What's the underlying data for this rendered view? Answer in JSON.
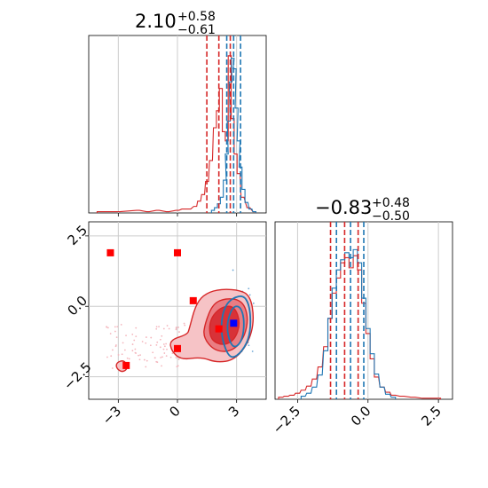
{
  "chart_data": {
    "type": "corner",
    "colors": {
      "red": "#d62728",
      "blue": "#1f77b4",
      "marker_red": "#ff0000",
      "marker_blue": "#0000ff",
      "grid": "#cccccc"
    },
    "parameters": [
      {
        "range": [
          -4.5,
          4.5
        ],
        "ticks": [
          -3,
          0,
          3
        ],
        "tick_labels": [
          "−3",
          "0",
          "3"
        ],
        "title": {
          "median": "2.10",
          "plus": "+0.58",
          "minus": "−0.61"
        },
        "quantiles_red": [
          1.49,
          2.1,
          2.68
        ],
        "quantiles_blue": [
          2.5,
          2.85,
          3.2
        ],
        "hist_red": {
          "centers": [
            -4.0,
            -3.0,
            -2.0,
            -1.5,
            -1.0,
            -0.5,
            0.0,
            0.3,
            0.6,
            0.9,
            1.1,
            1.3,
            1.5,
            1.7,
            1.9,
            2.05,
            2.2,
            2.35,
            2.5,
            2.65,
            2.8,
            2.95,
            3.1,
            3.3,
            3.6,
            3.9
          ],
          "heights": [
            1,
            1,
            2,
            1,
            2,
            1,
            2,
            3,
            3,
            5,
            9,
            14,
            24,
            40,
            65,
            78,
            95,
            62,
            55,
            120,
            72,
            45,
            30,
            12,
            4,
            1
          ]
        },
        "hist_blue": {
          "centers": [
            1.8,
            1.95,
            2.1,
            2.25,
            2.4,
            2.5,
            2.6,
            2.7,
            2.8,
            2.9,
            3.0,
            3.1,
            3.2,
            3.35,
            3.5,
            3.7,
            3.9
          ],
          "heights": [
            2,
            4,
            7,
            12,
            25,
            45,
            70,
            100,
            118,
            110,
            80,
            55,
            35,
            18,
            8,
            3,
            1
          ]
        },
        "hist_max": 130
      },
      {
        "range": [
          -3.3,
          3.0
        ],
        "ticks": [
          -2.5,
          0.0,
          2.5
        ],
        "tick_labels": [
          "−2.5",
          "0.0",
          "2.5"
        ],
        "title": {
          "median": "−0.83",
          "plus": "+0.48",
          "minus": "−0.50"
        },
        "quantiles_red": [
          -1.33,
          -0.83,
          -0.35
        ],
        "quantiles_blue": [
          -1.12,
          -0.62,
          -0.15
        ],
        "hist_red": {
          "centers": [
            -3.1,
            -2.9,
            -2.7,
            -2.5,
            -2.3,
            -2.1,
            -1.9,
            -1.7,
            -1.5,
            -1.35,
            -1.2,
            -1.05,
            -0.9,
            -0.75,
            -0.6,
            -0.45,
            -0.3,
            -0.15,
            0.0,
            0.15,
            0.3,
            0.5,
            0.7,
            0.9,
            1.2,
            1.6,
            2.0,
            2.5
          ],
          "heights": [
            2,
            3,
            4,
            6,
            9,
            13,
            20,
            32,
            52,
            80,
            105,
            120,
            135,
            140,
            130,
            142,
            128,
            95,
            65,
            40,
            22,
            12,
            7,
            4,
            3,
            2,
            1,
            1
          ]
        },
        "hist_blue": {
          "centers": [
            -2.3,
            -2.1,
            -1.9,
            -1.7,
            -1.5,
            -1.35,
            -1.2,
            -1.05,
            -0.9,
            -0.75,
            -0.6,
            -0.45,
            -0.3,
            -0.15,
            0.0,
            0.15,
            0.3,
            0.5,
            0.7,
            0.9
          ],
          "heights": [
            3,
            6,
            12,
            24,
            48,
            80,
            110,
            128,
            138,
            145,
            140,
            148,
            135,
            100,
            70,
            45,
            25,
            12,
            5,
            2
          ]
        },
        "hist_max": 165
      }
    ],
    "scatter": {
      "red_squares": [
        {
          "x": -3.4,
          "y": 1.9
        },
        {
          "x": 0.0,
          "y": 1.9
        },
        {
          "x": 0.8,
          "y": 0.2
        },
        {
          "x": 0.0,
          "y": -1.5
        },
        {
          "x": -2.6,
          "y": -2.1
        },
        {
          "x": 2.1,
          "y": -0.8
        }
      ],
      "blue_squares": [
        {
          "x": 2.85,
          "y": -0.6
        }
      ]
    },
    "contours_red": [
      [
        [
          0.6,
          -0.8
        ],
        [
          0.5,
          -1.0
        ],
        [
          -0.4,
          -1.2
        ],
        [
          -0.3,
          -1.6
        ],
        [
          0.2,
          -1.9
        ],
        [
          1.2,
          -1.8
        ],
        [
          2.0,
          -2.0
        ],
        [
          2.9,
          -1.9
        ],
        [
          3.6,
          -1.3
        ],
        [
          3.9,
          -0.5
        ],
        [
          3.7,
          0.4
        ],
        [
          3.0,
          0.6
        ],
        [
          2.0,
          0.6
        ],
        [
          1.3,
          0.4
        ],
        [
          0.9,
          0.0
        ]
      ],
      [
        [
          1.4,
          -0.6
        ],
        [
          1.3,
          -1.1
        ],
        [
          1.9,
          -1.6
        ],
        [
          2.8,
          -1.6
        ],
        [
          3.4,
          -1.1
        ],
        [
          3.6,
          -0.4
        ],
        [
          3.3,
          0.2
        ],
        [
          2.5,
          0.3
        ],
        [
          1.8,
          0.1
        ]
      ],
      [
        [
          1.6,
          -0.7
        ],
        [
          1.7,
          -1.2
        ],
        [
          2.3,
          -1.4
        ],
        [
          2.9,
          -1.2
        ],
        [
          3.2,
          -0.6
        ],
        [
          2.9,
          0.0
        ],
        [
          2.3,
          0.0
        ],
        [
          1.8,
          -0.3
        ]
      ]
    ],
    "contours_red_islands": [
      [
        [
          -3.1,
          -2.0
        ],
        [
          -2.7,
          -1.9
        ],
        [
          -2.5,
          -2.2
        ],
        [
          -2.8,
          -2.35
        ],
        [
          -3.1,
          -2.2
        ]
      ]
    ],
    "contours_blue": [
      [
        [
          2.2,
          -0.6
        ],
        [
          2.3,
          -1.3
        ],
        [
          2.7,
          -1.9
        ],
        [
          3.3,
          -1.6
        ],
        [
          3.7,
          -1.0
        ],
        [
          3.7,
          -0.1
        ],
        [
          3.4,
          0.4
        ],
        [
          2.8,
          0.3
        ],
        [
          2.4,
          0.0
        ]
      ],
      [
        [
          2.5,
          -0.6
        ],
        [
          2.6,
          -1.2
        ],
        [
          2.9,
          -1.5
        ],
        [
          3.3,
          -1.2
        ],
        [
          3.4,
          -0.5
        ],
        [
          3.2,
          0.0
        ],
        [
          2.8,
          0.0
        ]
      ]
    ]
  }
}
